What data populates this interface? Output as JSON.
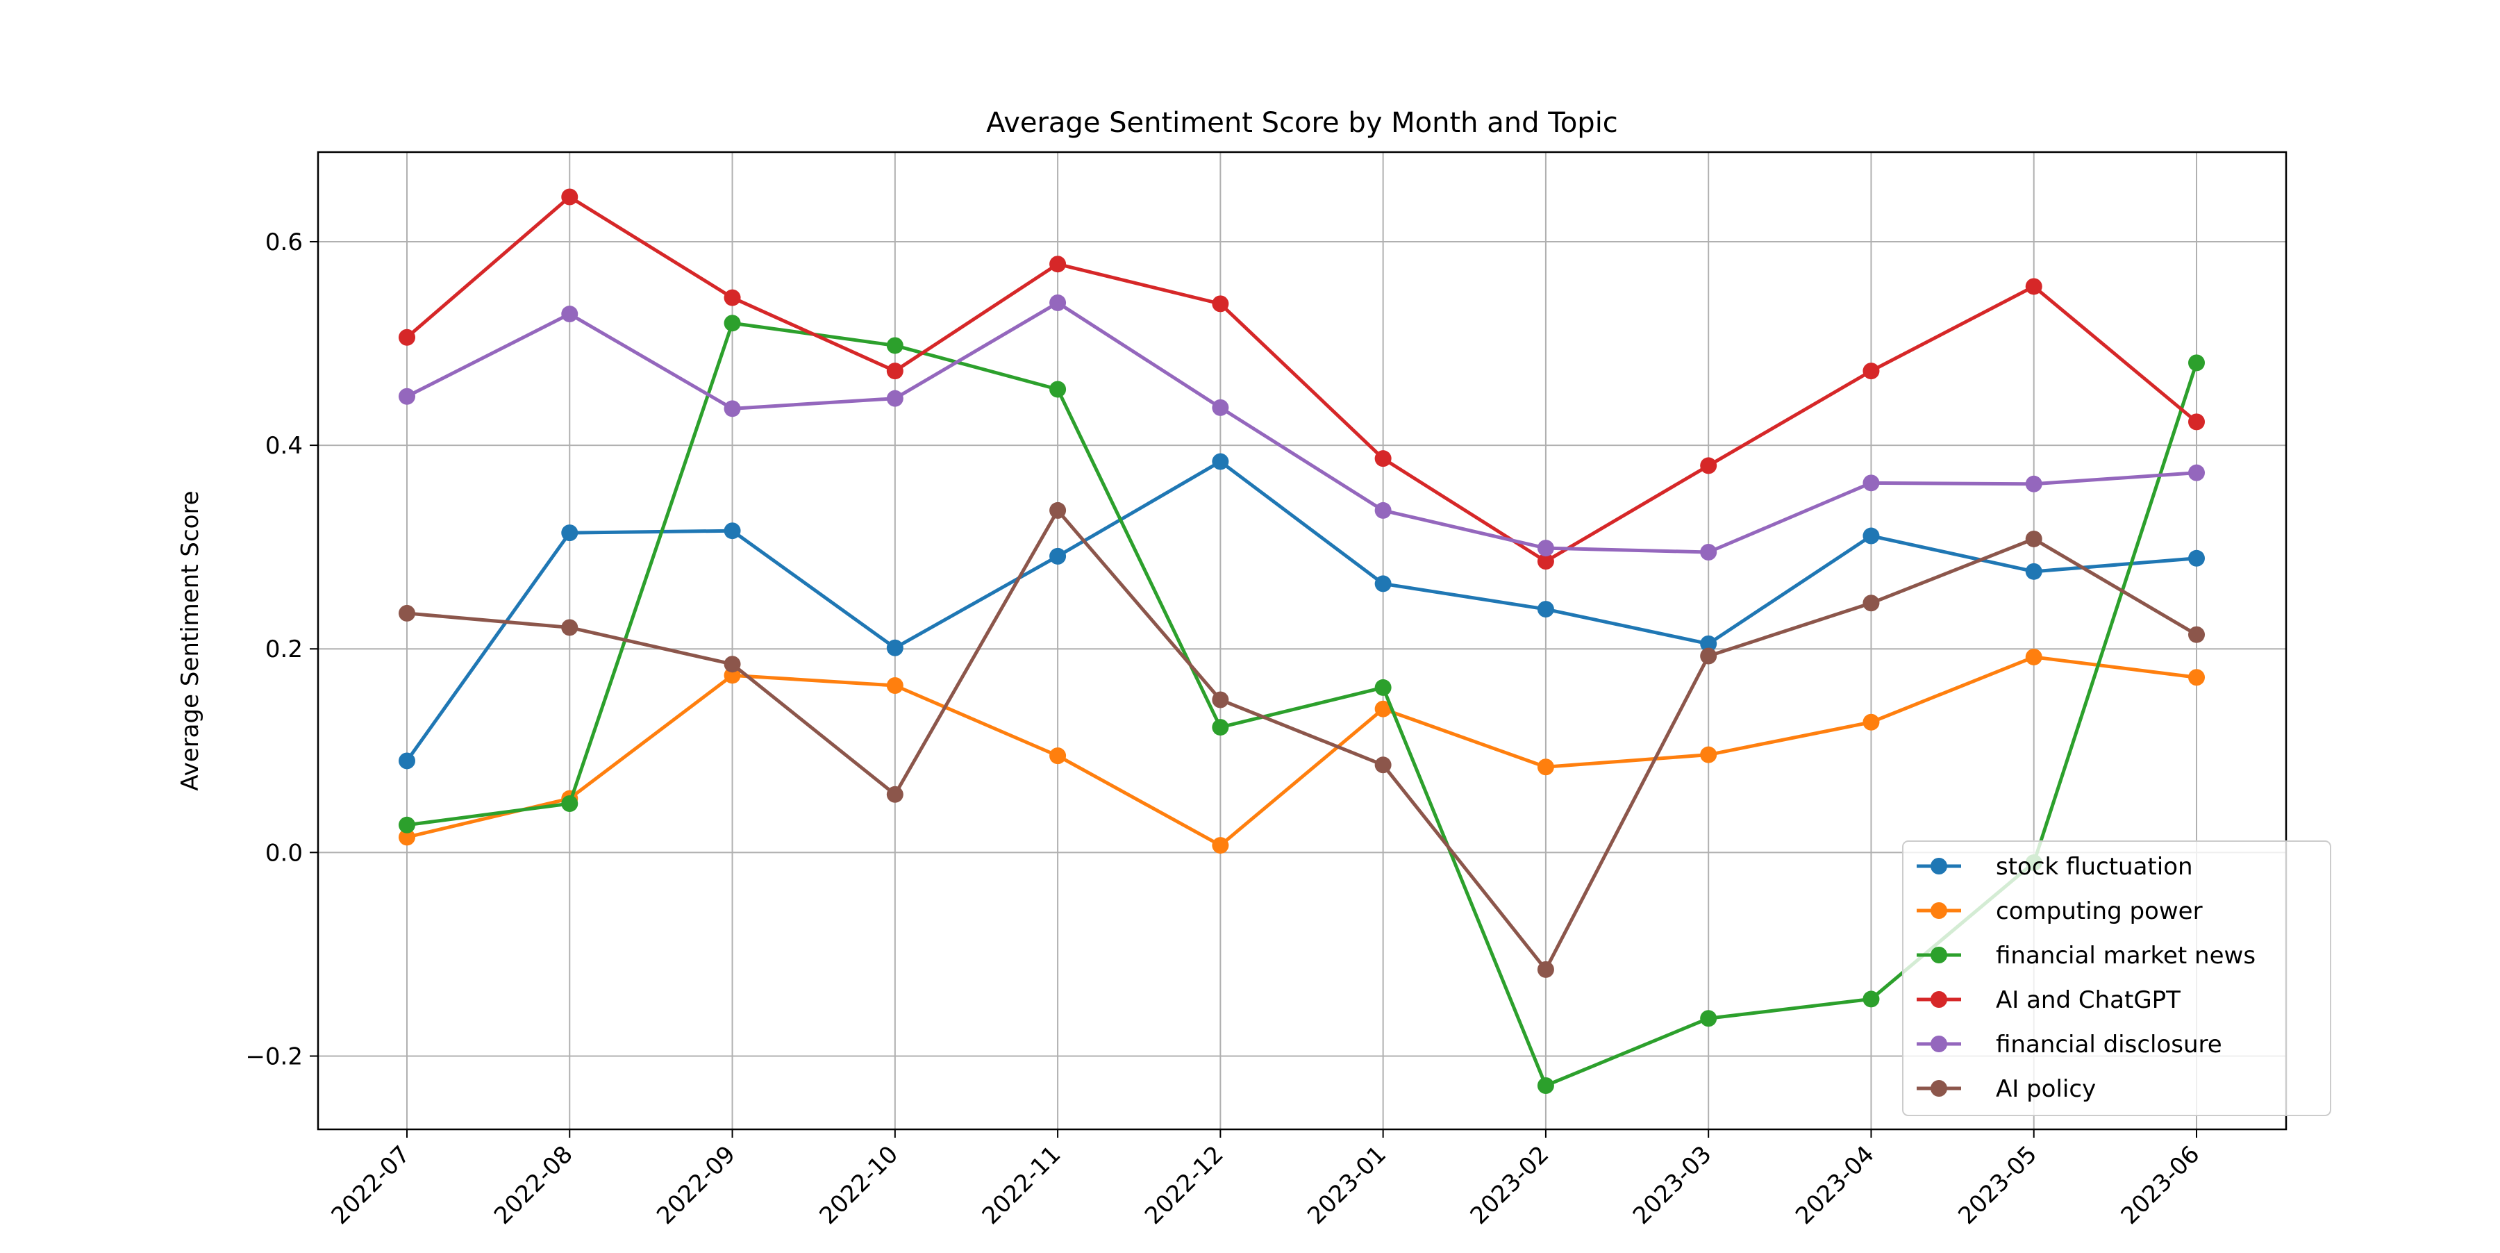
{
  "chart_data": {
    "type": "line",
    "title": "Average Sentiment Score by Month and Topic",
    "xlabel": "",
    "ylabel": "Average Sentiment Score",
    "x": [
      "2022-07",
      "2022-08",
      "2022-09",
      "2022-10",
      "2022-11",
      "2022-12",
      "2023-01",
      "2023-02",
      "2023-03",
      "2023-04",
      "2023-05",
      "2023-06"
    ],
    "ylim": [
      -0.272,
      0.688
    ],
    "yticks": [
      -0.2,
      0.0,
      0.2,
      0.4,
      0.6
    ],
    "ytick_labels": [
      "−0.2",
      "0.0",
      "0.2",
      "0.4",
      "0.6"
    ],
    "grid": true,
    "legend_position": "lower-right",
    "series": [
      {
        "name": "stock fluctuation",
        "color": "#1f77b4",
        "values": [
          0.09,
          0.314,
          0.316,
          0.201,
          0.291,
          0.384,
          0.264,
          0.239,
          0.205,
          0.311,
          0.276,
          0.289
        ]
      },
      {
        "name": "computing power",
        "color": "#ff7f0e",
        "values": [
          0.015,
          0.053,
          0.174,
          0.164,
          0.095,
          0.007,
          0.141,
          0.084,
          0.096,
          0.128,
          0.192,
          0.172
        ]
      },
      {
        "name": "financial market news",
        "color": "#2ca02c",
        "values": [
          0.027,
          0.048,
          0.52,
          0.498,
          0.455,
          0.123,
          0.162,
          -0.229,
          -0.163,
          -0.144,
          -0.01,
          0.481
        ]
      },
      {
        "name": "AI and ChatGPT",
        "color": "#d62728",
        "values": [
          0.506,
          0.644,
          0.545,
          0.473,
          0.578,
          0.539,
          0.387,
          0.286,
          0.38,
          0.473,
          0.556,
          0.423
        ]
      },
      {
        "name": "financial disclosure",
        "color": "#9467bd",
        "values": [
          0.448,
          0.529,
          0.436,
          0.446,
          0.54,
          0.437,
          0.336,
          0.299,
          0.295,
          0.363,
          0.362,
          0.373
        ]
      },
      {
        "name": "AI policy",
        "color": "#8c564b",
        "values": [
          0.235,
          0.221,
          0.185,
          0.057,
          0.336,
          0.15,
          0.086,
          -0.115,
          0.193,
          0.245,
          0.308,
          0.214
        ]
      }
    ]
  }
}
